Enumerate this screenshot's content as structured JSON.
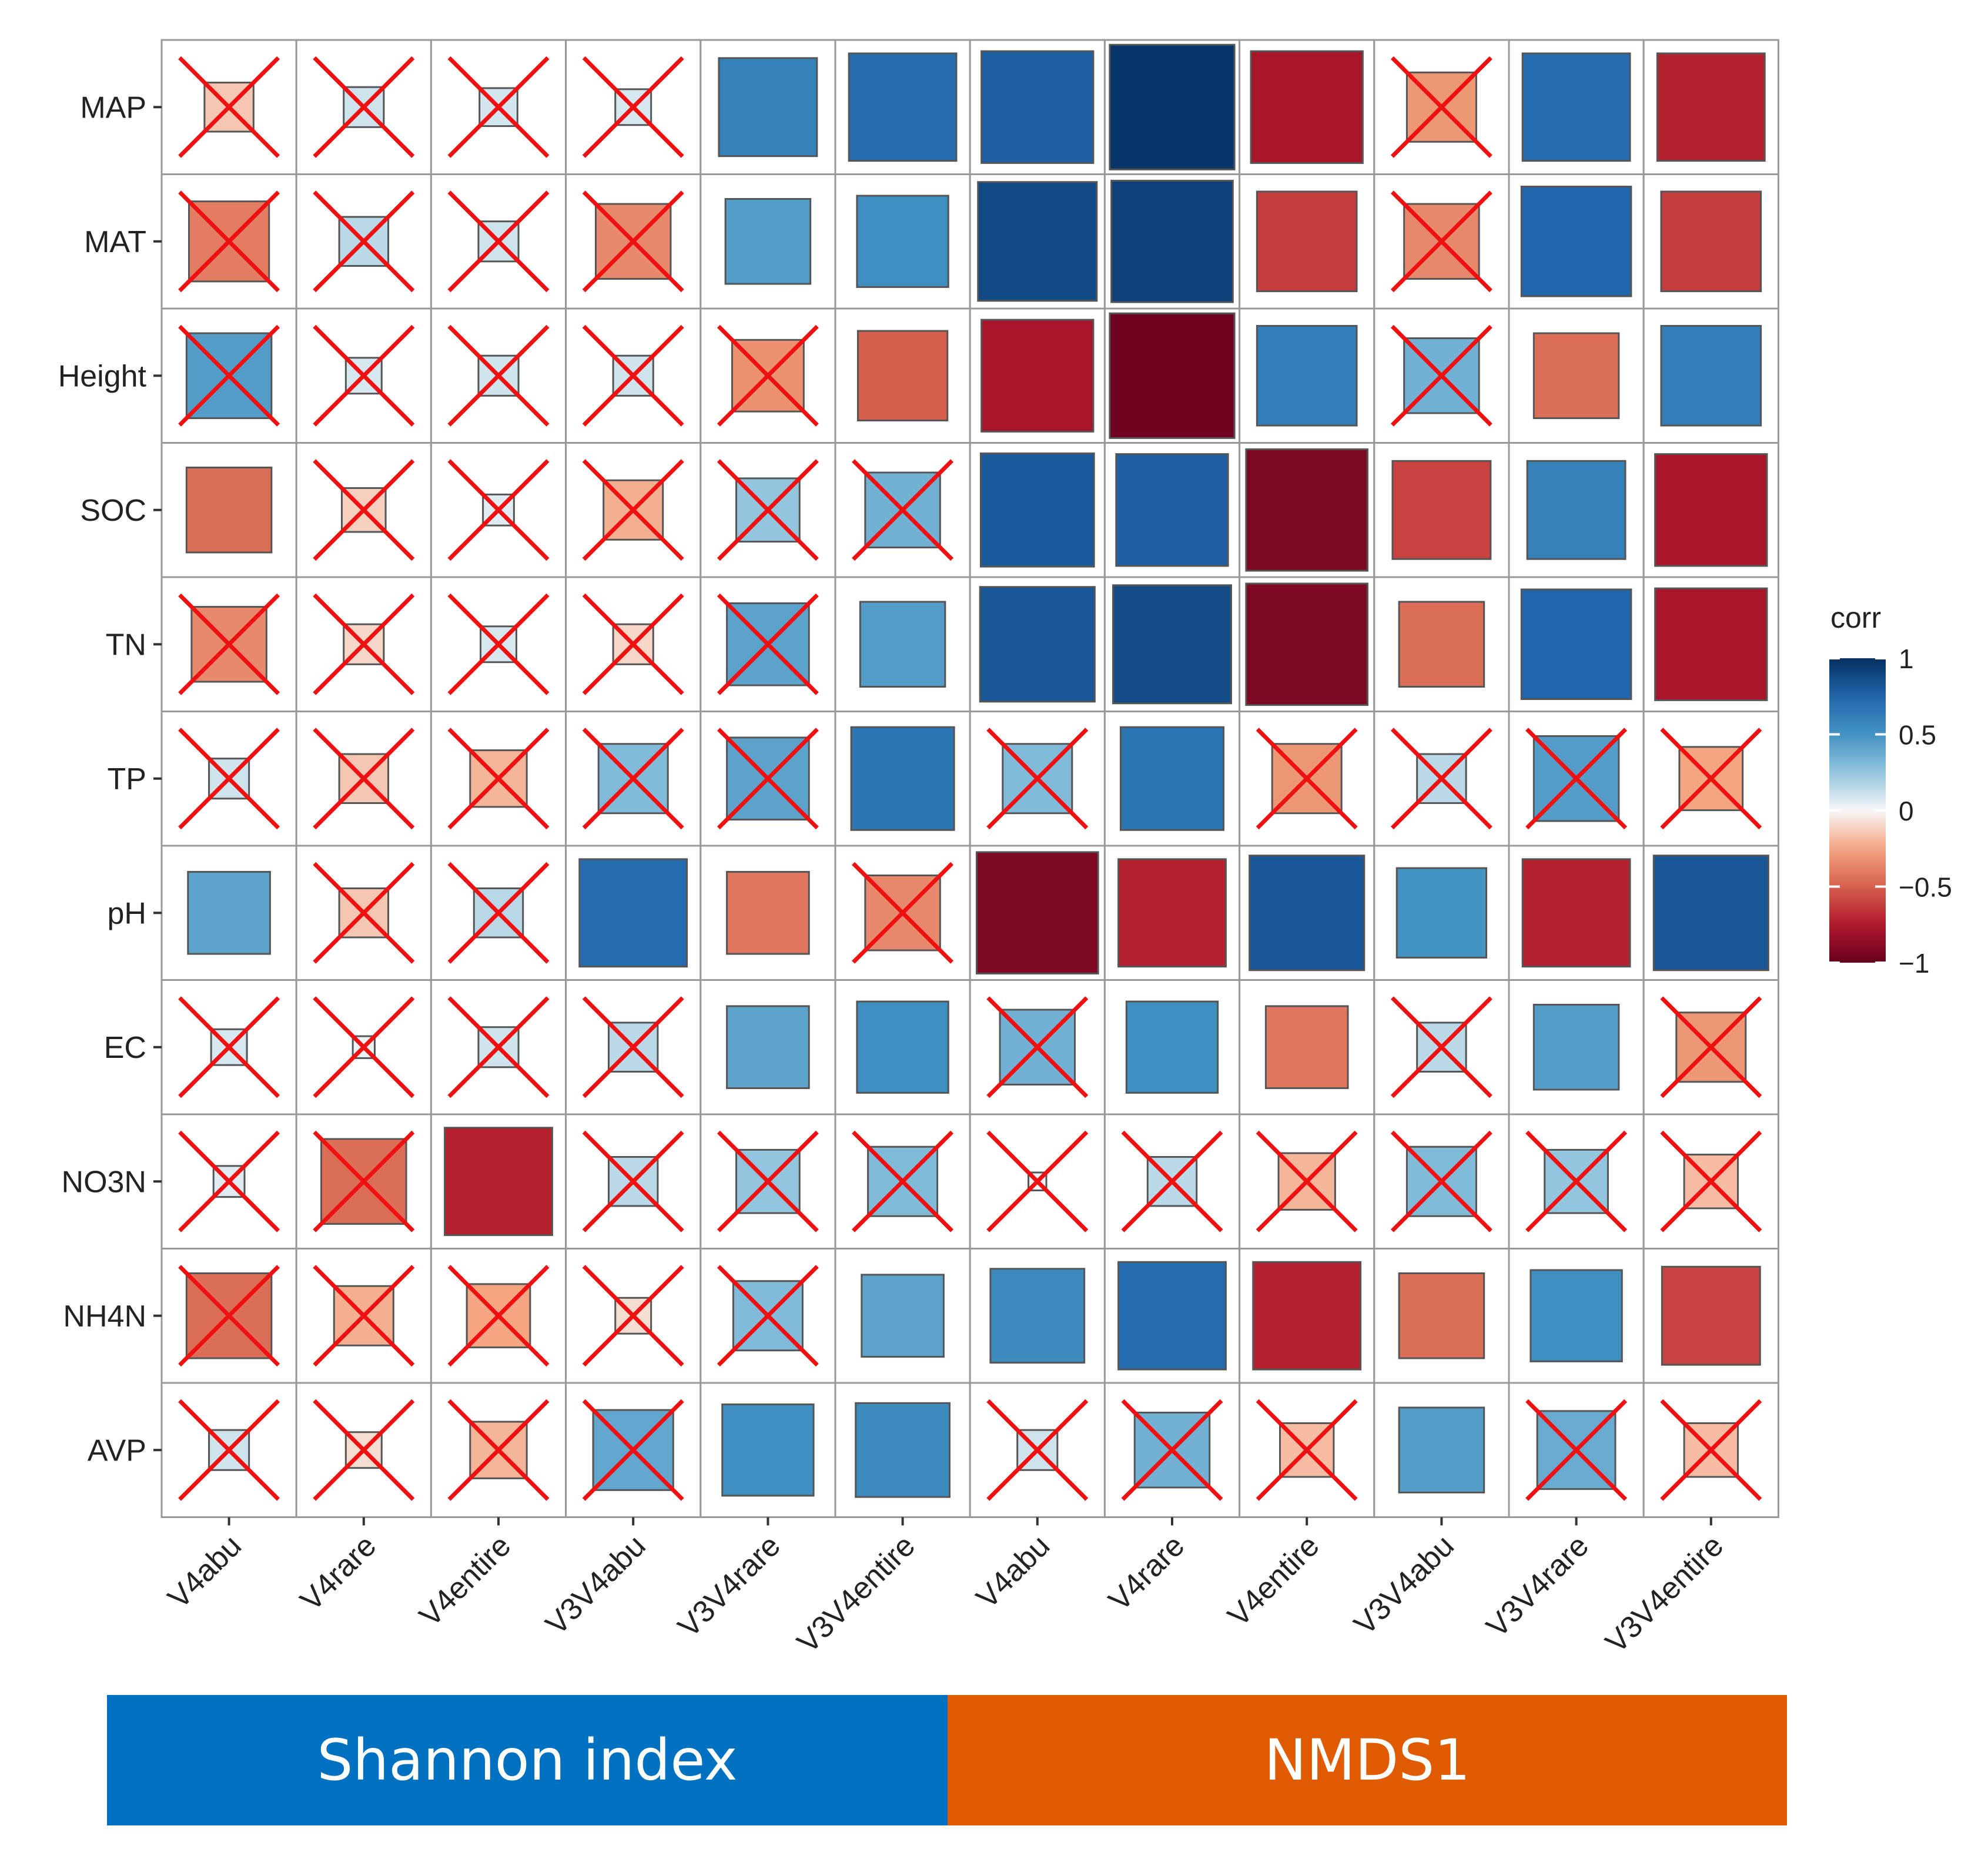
{
  "chart_data": {
    "type": "heatmap",
    "subtype": "correlation-matrix (square size and colour = correlation; red cross = not significant)",
    "rows": [
      "MAP",
      "MAT",
      "Height",
      "SOC",
      "TN",
      "TP",
      "pH",
      "EC",
      "NO3N",
      "NH4N",
      "AVP"
    ],
    "columns": [
      "V4abu",
      "V4rare",
      "V4entire",
      "V3V4abu",
      "V3V4rare",
      "V3V4entire",
      "V4abu",
      "V4rare",
      "V4entire",
      "V3V4abu",
      "V3V4rare",
      "V3V4entire"
    ],
    "values": [
      [
        -0.15,
        0.1,
        0.09,
        0.08,
        0.6,
        0.72,
        0.78,
        0.97,
        -0.78,
        -0.3,
        0.72,
        -0.72
      ],
      [
        -0.4,
        0.15,
        0.1,
        -0.35,
        0.45,
        0.52,
        0.88,
        0.92,
        -0.62,
        -0.35,
        0.75,
        -0.62
      ],
      [
        0.45,
        0.08,
        0.1,
        0.1,
        -0.32,
        -0.5,
        -0.78,
        -0.97,
        0.62,
        0.35,
        -0.45,
        0.62
      ],
      [
        -0.45,
        -0.12,
        0.06,
        -0.22,
        0.25,
        0.35,
        0.8,
        0.78,
        -0.92,
        -0.6,
        0.6,
        -0.78
      ],
      [
        -0.35,
        -0.1,
        0.08,
        -0.1,
        0.42,
        0.45,
        0.82,
        0.87,
        -0.92,
        -0.45,
        0.75,
        -0.78
      ],
      [
        0.1,
        -0.15,
        -0.2,
        0.3,
        0.42,
        0.66,
        0.3,
        0.66,
        -0.3,
        0.15,
        0.45,
        -0.25
      ],
      [
        0.42,
        -0.15,
        0.15,
        0.72,
        -0.42,
        -0.35,
        -0.92,
        -0.72,
        0.82,
        0.5,
        -0.72,
        0.82
      ],
      [
        0.08,
        0.03,
        0.1,
        0.15,
        0.42,
        0.52,
        0.35,
        0.52,
        -0.42,
        0.15,
        0.45,
        -0.3
      ],
      [
        0.06,
        -0.45,
        -0.72,
        0.15,
        0.25,
        0.3,
        0.02,
        0.15,
        -0.2,
        0.3,
        0.25,
        -0.18
      ],
      [
        -0.45,
        -0.22,
        -0.25,
        -0.08,
        0.3,
        0.42,
        0.55,
        0.72,
        -0.72,
        -0.45,
        0.52,
        -0.6
      ],
      [
        0.1,
        -0.08,
        -0.2,
        0.4,
        0.52,
        0.55,
        0.1,
        0.35,
        -0.18,
        0.45,
        0.38,
        -0.18
      ]
    ],
    "not_significant": [
      [
        true,
        true,
        true,
        true,
        false,
        false,
        false,
        false,
        false,
        true,
        false,
        false
      ],
      [
        true,
        true,
        true,
        true,
        false,
        false,
        false,
        false,
        false,
        true,
        false,
        false
      ],
      [
        true,
        true,
        true,
        true,
        true,
        false,
        false,
        false,
        false,
        true,
        false,
        false
      ],
      [
        false,
        true,
        true,
        true,
        true,
        true,
        false,
        false,
        false,
        false,
        false,
        false
      ],
      [
        true,
        true,
        true,
        true,
        true,
        false,
        false,
        false,
        false,
        false,
        false,
        false
      ],
      [
        true,
        true,
        true,
        true,
        true,
        false,
        true,
        false,
        true,
        true,
        true,
        true
      ],
      [
        false,
        true,
        true,
        false,
        false,
        true,
        false,
        false,
        false,
        false,
        false,
        false
      ],
      [
        true,
        true,
        true,
        true,
        false,
        false,
        true,
        false,
        false,
        true,
        false,
        true
      ],
      [
        true,
        true,
        false,
        true,
        true,
        true,
        true,
        true,
        true,
        true,
        true,
        true
      ],
      [
        true,
        true,
        true,
        true,
        true,
        false,
        false,
        false,
        false,
        false,
        false,
        false
      ],
      [
        true,
        true,
        true,
        true,
        false,
        false,
        true,
        true,
        true,
        false,
        true,
        true
      ]
    ],
    "legend": {
      "title": "corr",
      "ticks": [
        1,
        0.5,
        0,
        -0.5,
        -1
      ],
      "tick_labels": [
        "1",
        "0.5",
        "0",
        "−0.5",
        "−1"
      ],
      "placement": "right"
    },
    "groups": [
      {
        "label": "Shannon index",
        "columns": [
          0,
          1,
          2,
          3,
          4,
          5
        ],
        "color": "#0070c0"
      },
      {
        "label": "NMDS1",
        "columns": [
          6,
          7,
          8,
          9,
          10,
          11
        ],
        "color": "#e05a00"
      }
    ],
    "colors": {
      "positive_strong": "#053061",
      "positive": "#2166ac",
      "positive_mid": "#4393c3",
      "positive_light": "#92c5de",
      "neutral": "#f7f7f7",
      "negative_light": "#f4a582",
      "negative_mid": "#d6604d",
      "negative": "#b2182b",
      "negative_strong": "#67001f",
      "cross": "#ee1111",
      "grid": "#999999"
    }
  }
}
